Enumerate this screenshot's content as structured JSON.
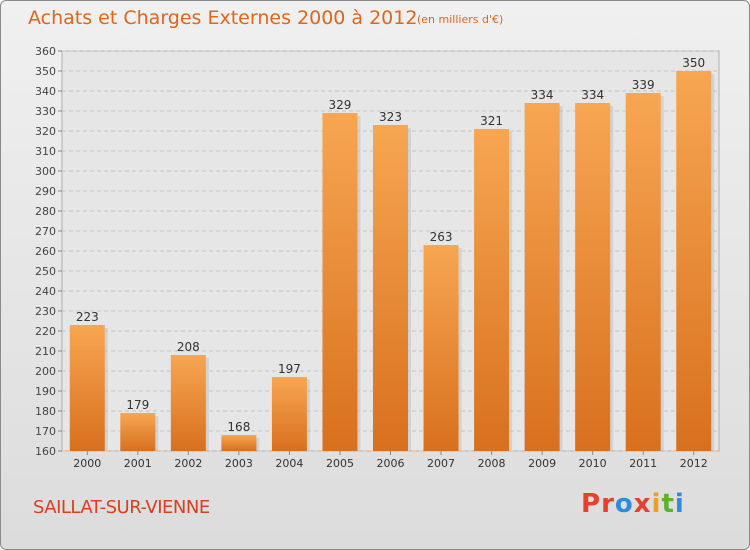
{
  "header": {
    "title": "Achats et Charges Externes 2000 à 2012",
    "unit": "(en milliers d'€)"
  },
  "footer": {
    "location": "SAILLAT-SUR-VIENNE",
    "logo_letters": [
      "P",
      "r",
      "o",
      "x",
      "i",
      "t",
      "i"
    ]
  },
  "colors": {
    "title": "#e0661a",
    "location": "#d8401e",
    "bar_light": "#f7a652",
    "bar_dark": "#d8701e",
    "logo": [
      "#e8402a",
      "#e8402a",
      "#2e8ce0",
      "#e8402a",
      "#f0a020",
      "#60b030",
      "#2e8ce0"
    ]
  },
  "chart_data": {
    "type": "bar",
    "categories": [
      "2000",
      "2001",
      "2002",
      "2003",
      "2004",
      "2005",
      "2006",
      "2007",
      "2008",
      "2009",
      "2010",
      "2011",
      "2012"
    ],
    "values": [
      223,
      179,
      208,
      168,
      197,
      329,
      323,
      263,
      321,
      334,
      334,
      339,
      350
    ],
    "data_labels": [
      "223",
      "179",
      "208",
      "168",
      "197",
      "329",
      "323",
      "263",
      "321",
      "334",
      "334",
      "339",
      "350"
    ],
    "yticks": [
      "160",
      "170",
      "180",
      "190",
      "200",
      "210",
      "220",
      "230",
      "240",
      "250",
      "260",
      "270",
      "280",
      "290",
      "300",
      "310",
      "320",
      "330",
      "340",
      "350",
      "360"
    ],
    "ylim": [
      160,
      360
    ],
    "xlabel": "",
    "ylabel": "",
    "grid": true,
    "legend": "none"
  }
}
